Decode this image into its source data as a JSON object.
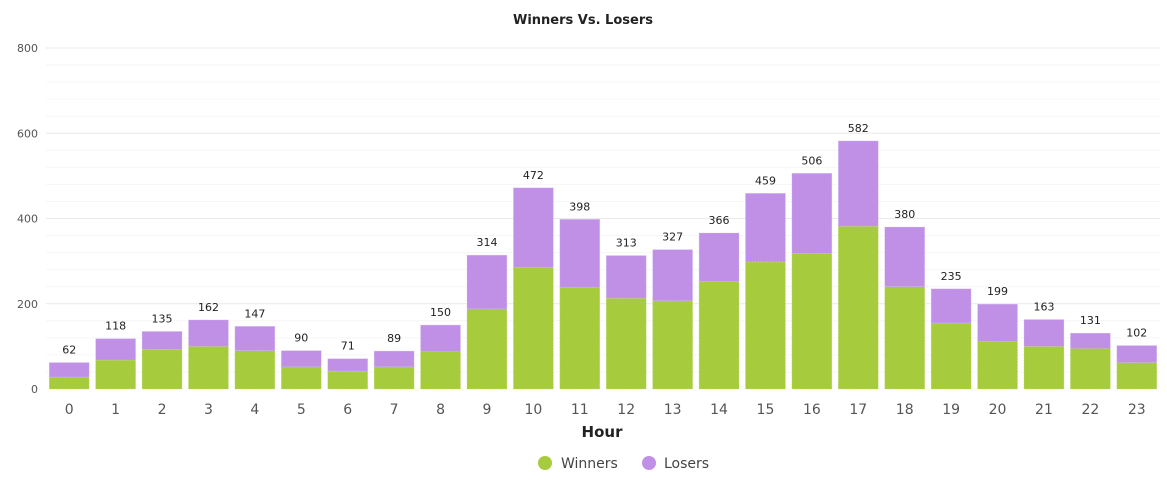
{
  "chart_data": {
    "type": "bar",
    "stacked": true,
    "title": "Winners Vs. Losers",
    "xlabel": "Hour",
    "ylabel": "",
    "ylim": [
      0,
      800
    ],
    "yticks": [
      "0",
      "200",
      "400",
      "600",
      "800"
    ],
    "grid": true,
    "legend_position": "bottom",
    "categories": [
      "0",
      "1",
      "2",
      "3",
      "4",
      "5",
      "6",
      "7",
      "8",
      "9",
      "10",
      "11",
      "12",
      "13",
      "14",
      "15",
      "16",
      "17",
      "18",
      "19",
      "20",
      "21",
      "22",
      "23"
    ],
    "series": [
      {
        "name": "Winners",
        "color": "#a6cb3c",
        "values": [
          28,
          68,
          93,
          100,
          90,
          52,
          42,
          52,
          88,
          188,
          285,
          238,
          213,
          207,
          252,
          298,
          318,
          382,
          240,
          155,
          112,
          100,
          95,
          62
        ]
      },
      {
        "name": "Losers",
        "color": "#bf90e6",
        "values": [
          34,
          50,
          42,
          62,
          57,
          38,
          29,
          37,
          62,
          126,
          187,
          160,
          100,
          120,
          114,
          161,
          188,
          200,
          140,
          80,
          87,
          63,
          36,
          40
        ]
      }
    ],
    "totals": [
      62,
      118,
      135,
      162,
      147,
      90,
      71,
      89,
      150,
      314,
      472,
      398,
      313,
      327,
      366,
      459,
      506,
      582,
      380,
      235,
      199,
      163,
      131,
      102
    ]
  },
  "legend": {
    "items": [
      {
        "label": "Winners",
        "color": "#a6cb3c"
      },
      {
        "label": "Losers",
        "color": "#bf90e6"
      }
    ]
  }
}
